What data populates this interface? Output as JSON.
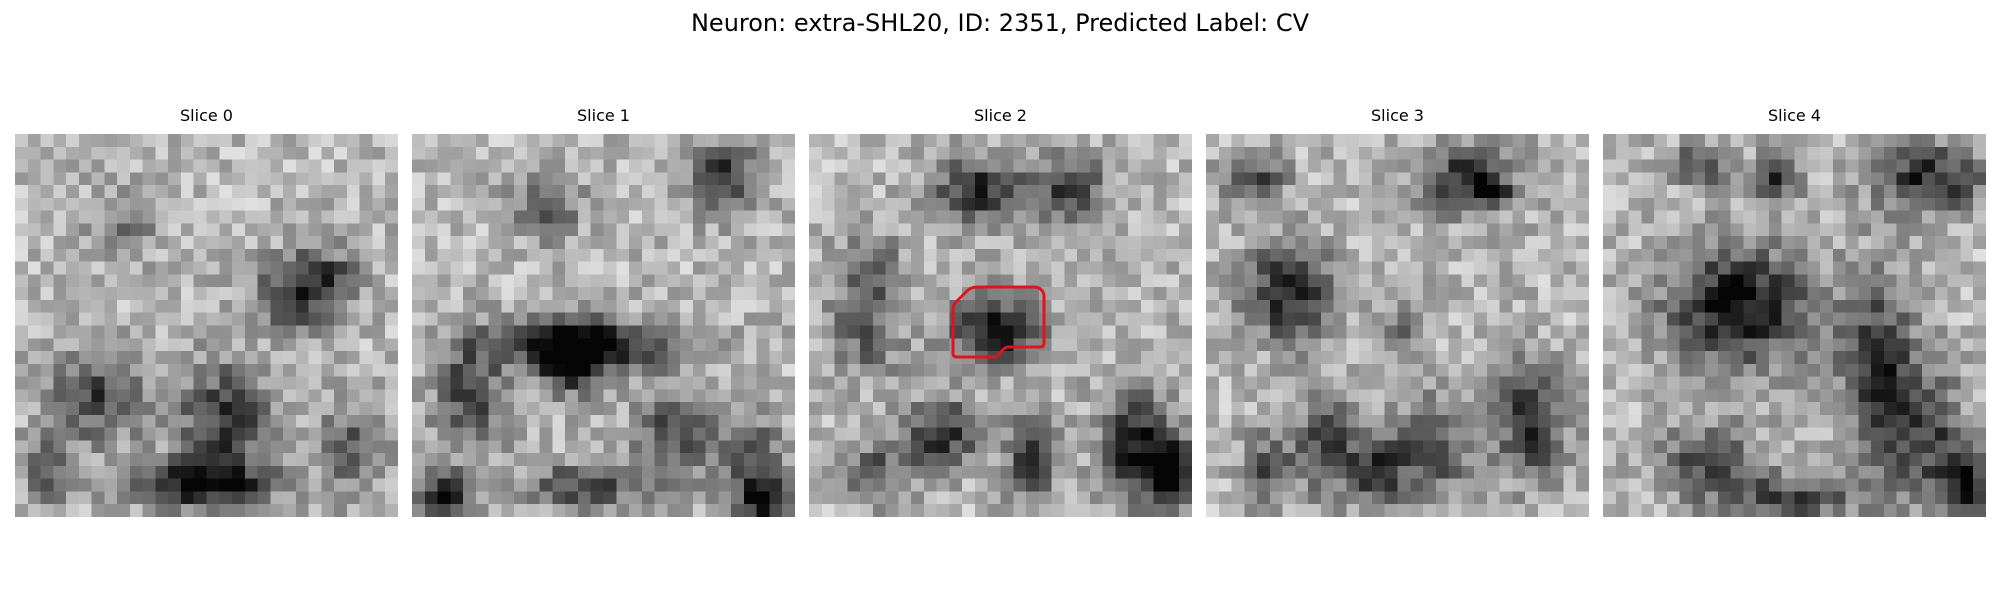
{
  "figure": {
    "title": "Neuron: extra-SHL20, ID: 2351, Predicted Label: CV"
  },
  "panels": [
    {
      "title": "Slice 0",
      "has_contour": false
    },
    {
      "title": "Slice 1",
      "has_contour": false
    },
    {
      "title": "Slice 2",
      "has_contour": true
    },
    {
      "title": "Slice 3",
      "has_contour": false
    },
    {
      "title": "Slice 4",
      "has_contour": false
    }
  ],
  "colors": {
    "contour": "#e0141e",
    "background": "#ffffff"
  }
}
